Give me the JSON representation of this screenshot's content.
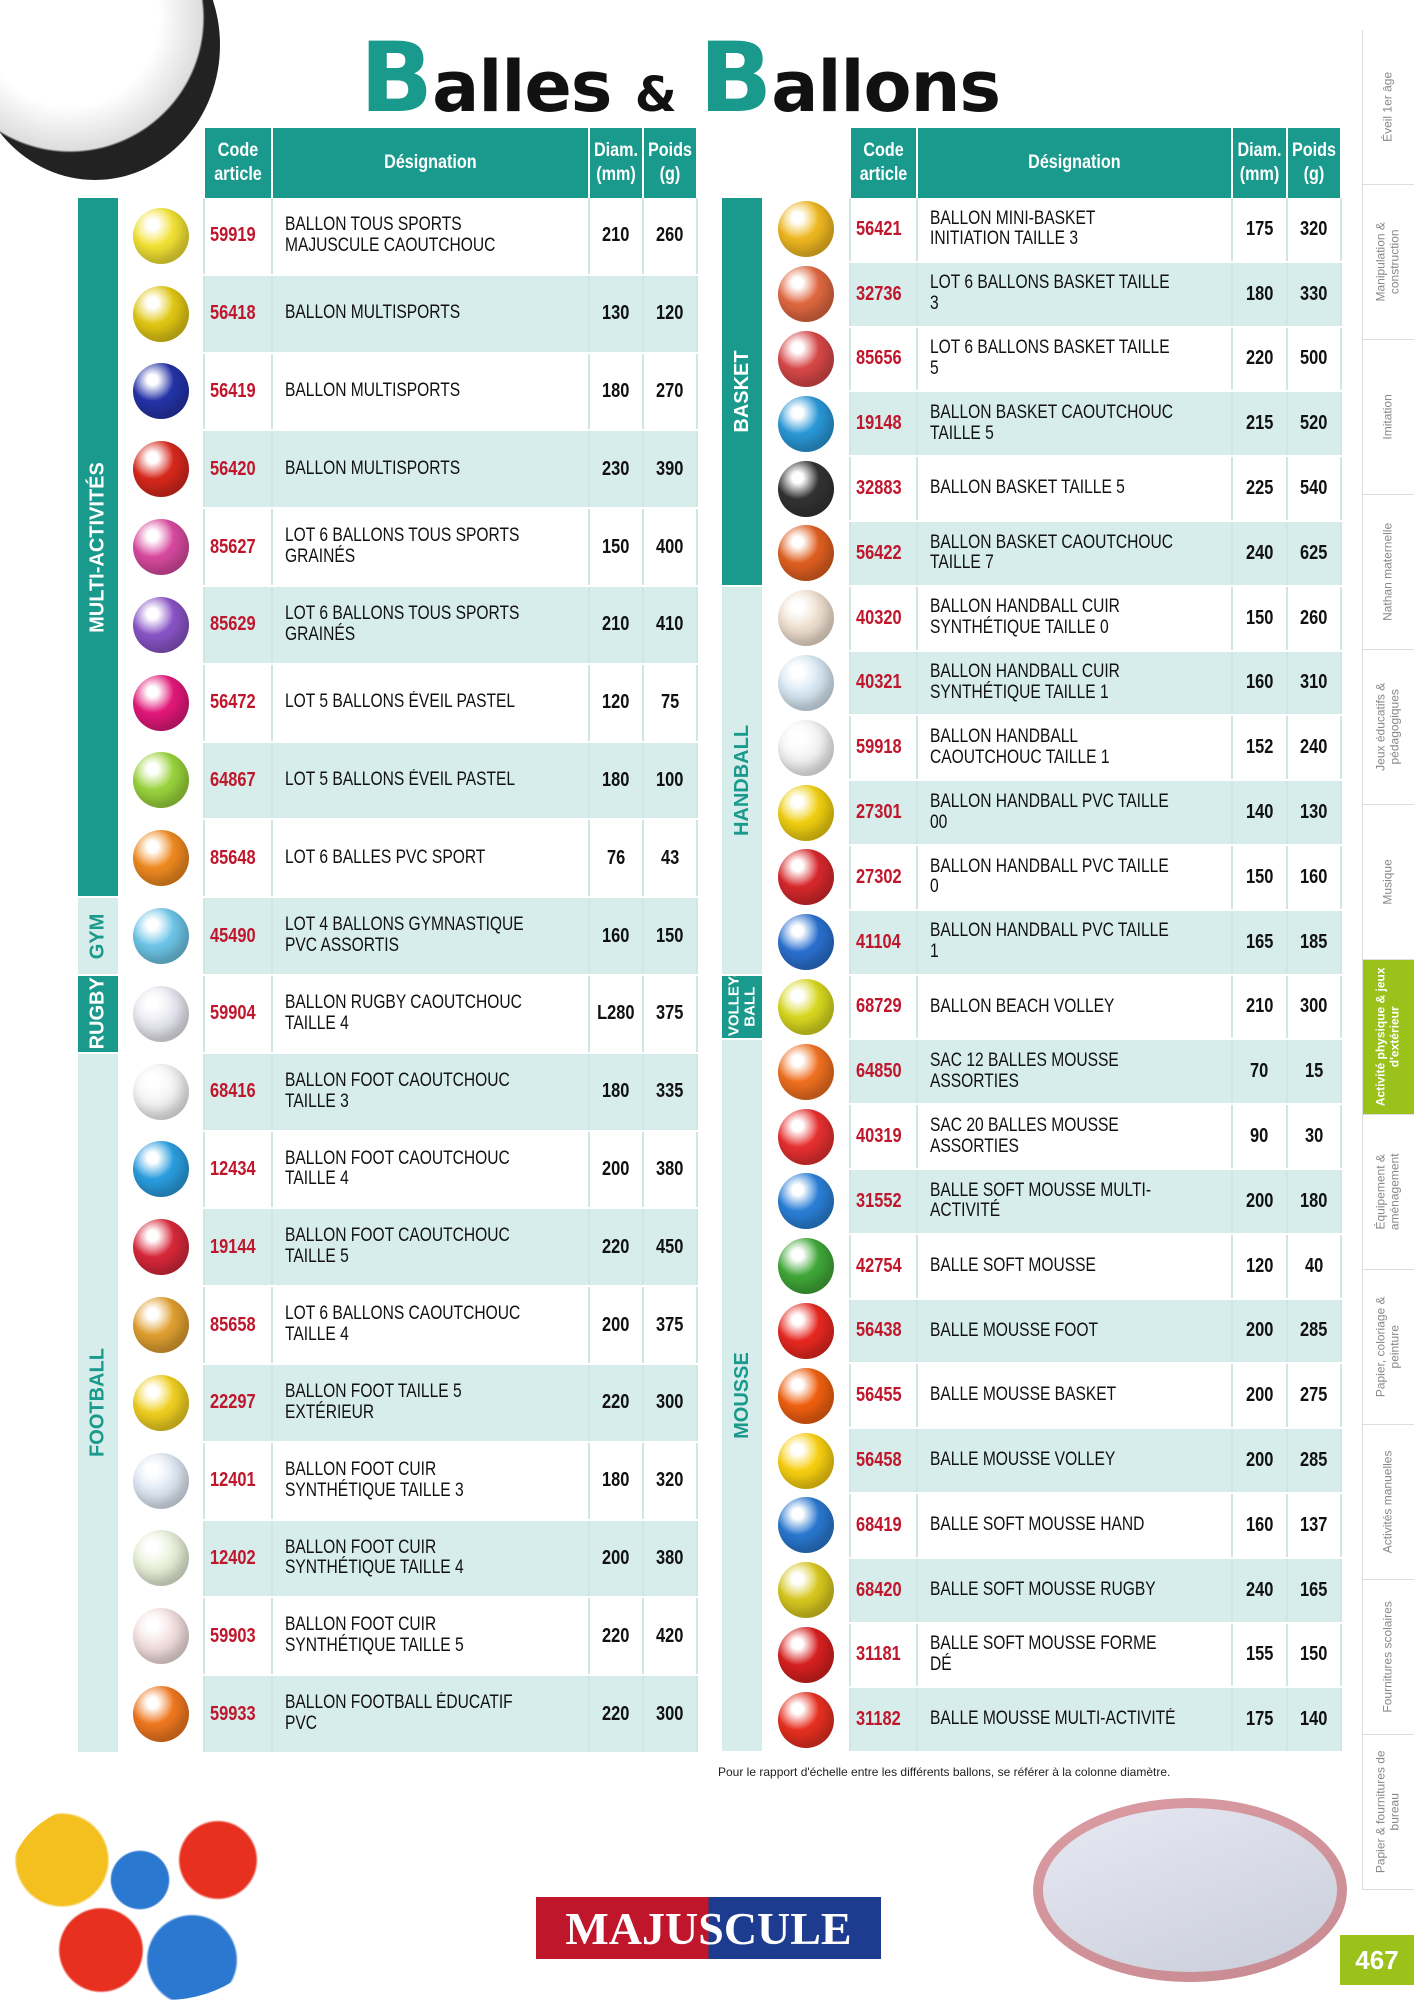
{
  "title": {
    "b1": "B",
    "w1": "alles",
    "amp": "&",
    "b2": "B",
    "w2": "allons"
  },
  "headers": {
    "code": "Code article",
    "designation": "Désignation",
    "diam": "Diam. (mm)",
    "poids": "Poids (g)"
  },
  "colors": {
    "accent": "#1a9a8c",
    "code": "#c0162c",
    "row_alt": "#d7edeb",
    "nav_active": "#9ac21a"
  },
  "left_table": {
    "categories": [
      {
        "label": "MULTI-ACTIVITÉS",
        "rows": 9,
        "style": "dark"
      },
      {
        "label": "GYM",
        "rows": 1,
        "style": "light"
      },
      {
        "label": "RUGBY",
        "rows": 1,
        "style": "dark"
      },
      {
        "label": "FOOTBALL",
        "rows": 9,
        "style": "light"
      }
    ],
    "rows": [
      {
        "code": "59919",
        "designation": "BALLON TOUS SPORTS MAJUSCULE CAOUTCHOUC",
        "diam": "210",
        "poids": "260",
        "color": "#f3e234"
      },
      {
        "code": "56418",
        "designation": "BALLON MULTISPORTS",
        "diam": "130",
        "poids": "120",
        "color": "#e2c814"
      },
      {
        "code": "56419",
        "designation": "BALLON MULTISPORTS",
        "diam": "180",
        "poids": "270",
        "color": "#2433a8"
      },
      {
        "code": "56420",
        "designation": "BALLON MULTISPORTS",
        "diam": "230",
        "poids": "390",
        "color": "#d8281c"
      },
      {
        "code": "85627",
        "designation": "LOT 6 BALLONS TOUS SPORTS GRAINÉS",
        "diam": "150",
        "poids": "400",
        "color": "#d94aa0"
      },
      {
        "code": "85629",
        "designation": "LOT 6 BALLONS TOUS SPORTS GRAINÉS",
        "diam": "210",
        "poids": "410",
        "color": "#8a54c8"
      },
      {
        "code": "56472",
        "designation": "LOT 5 BALLONS ÉVEIL PASTEL",
        "diam": "120",
        "poids": "75",
        "color": "#e3187a"
      },
      {
        "code": "64867",
        "designation": "LOT 5 BALLONS ÉVEIL PASTEL",
        "diam": "180",
        "poids": "100",
        "color": "#9ad43c"
      },
      {
        "code": "85648",
        "designation": "LOT 6 BALLES PVC SPORT",
        "diam": "76",
        "poids": "43",
        "color": "#f08a20"
      },
      {
        "code": "45490",
        "designation": "LOT 4 BALLONS GYMNASTIQUE PVC ASSORTIS",
        "diam": "160",
        "poids": "150",
        "color": "#6ec6e8"
      },
      {
        "code": "59904",
        "designation": "BALLON RUGBY CAOUTCHOUC TAILLE 4",
        "diam": "L280",
        "poids": "375",
        "color": "#e8e8f0"
      },
      {
        "code": "68416",
        "designation": "BALLON FOOT CAOUTCHOUC TAILLE 3",
        "diam": "180",
        "poids": "335",
        "color": "#f4f4f4"
      },
      {
        "code": "12434",
        "designation": "BALLON FOOT CAOUTCHOUC TAILLE 4",
        "diam": "200",
        "poids": "380",
        "color": "#2a9ee0"
      },
      {
        "code": "19144",
        "designation": "BALLON FOOT CAOUTCHOUC TAILLE 5",
        "diam": "220",
        "poids": "450",
        "color": "#d8283a"
      },
      {
        "code": "85658",
        "designation": "LOT 6 BALLONS CAOUTCHOUC TAILLE 4",
        "diam": "200",
        "poids": "375",
        "color": "#e0a030"
      },
      {
        "code": "22297",
        "designation": "BALLON FOOT TAILLE 5 EXTÉRIEUR",
        "diam": "220",
        "poids": "300",
        "color": "#f0d020"
      },
      {
        "code": "12401",
        "designation": "BALLON FOOT CUIR SYNTHÉTIQUE TAILLE 3",
        "diam": "180",
        "poids": "320",
        "color": "#dfe8f4"
      },
      {
        "code": "12402",
        "designation": "BALLON FOOT CUIR SYNTHÉTIQUE TAILLE 4",
        "diam": "200",
        "poids": "380",
        "color": "#e8f0d8"
      },
      {
        "code": "59903",
        "designation": "BALLON FOOT CUIR SYNTHÉTIQUE TAILLE 5",
        "diam": "220",
        "poids": "420",
        "color": "#f4e0e0"
      },
      {
        "code": "59933",
        "designation": "BALLON FOOTBALL ÉDUCATIF PVC",
        "diam": "220",
        "poids": "300",
        "color": "#f07820"
      }
    ]
  },
  "right_table": {
    "categories": [
      {
        "label": "BASKET",
        "rows": 6,
        "style": "dark"
      },
      {
        "label": "HANDBALL",
        "rows": 6,
        "style": "light"
      },
      {
        "label": "VOLLEY-BALL",
        "rows": 1,
        "style": "dark"
      },
      {
        "label": "MOUSSE",
        "rows": 11,
        "style": "light"
      }
    ],
    "rows": [
      {
        "code": "56421",
        "designation": "BALLON MINI-BASKET INITIATION TAILLE 3",
        "diam": "175",
        "poids": "320",
        "color": "#f0b820"
      },
      {
        "code": "32736",
        "designation": "LOT 6 BALLONS BASKET TAILLE 3",
        "diam": "180",
        "poids": "330",
        "color": "#e06840"
      },
      {
        "code": "85656",
        "designation": "LOT 6 BALLONS BASKET TAILLE 5",
        "diam": "220",
        "poids": "500",
        "color": "#d84848"
      },
      {
        "code": "19148",
        "designation": "BALLON BASKET CAOUTCHOUC TAILLE 5",
        "diam": "215",
        "poids": "520",
        "color": "#2a98d8"
      },
      {
        "code": "32883",
        "designation": "BALLON BASKET TAILLE 5",
        "diam": "225",
        "poids": "540",
        "color": "#333"
      },
      {
        "code": "56422",
        "designation": "BALLON BASKET CAOUTCHOUC TAILLE 7",
        "diam": "240",
        "poids": "625",
        "color": "#e06020"
      },
      {
        "code": "40320",
        "designation": "BALLON HANDBALL CUIR SYNTHÉTIQUE TAILLE 0",
        "diam": "150",
        "poids": "260",
        "color": "#f0e0d0"
      },
      {
        "code": "40321",
        "designation": "BALLON HANDBALL CUIR SYNTHÉTIQUE TAILLE 1",
        "diam": "160",
        "poids": "310",
        "color": "#d8e8f4"
      },
      {
        "code": "59918",
        "designation": "BALLON HANDBALL CAOUTCHOUC TAILLE 1",
        "diam": "152",
        "poids": "240",
        "color": "#f4f4f4"
      },
      {
        "code": "27301",
        "designation": "BALLON HANDBALL PVC TAILLE 00",
        "diam": "140",
        "poids": "130",
        "color": "#f0d010"
      },
      {
        "code": "27302",
        "designation": "BALLON HANDBALL PVC TAILLE 0",
        "diam": "150",
        "poids": "160",
        "color": "#d8282c"
      },
      {
        "code": "41104",
        "designation": "BALLON HANDBALL PVC TAILLE 1",
        "diam": "165",
        "poids": "185",
        "color": "#2a70d0"
      },
      {
        "code": "68729",
        "designation": "BALLON BEACH VOLLEY",
        "diam": "210",
        "poids": "300",
        "color": "#d8d820"
      },
      {
        "code": "64850",
        "designation": "SAC 12 BALLES MOUSSE ASSORTIES",
        "diam": "70",
        "poids": "15",
        "color": "#f07020"
      },
      {
        "code": "40319",
        "designation": "SAC 20 BALLES MOUSSE ASSORTIES",
        "diam": "90",
        "poids": "30",
        "color": "#e83030"
      },
      {
        "code": "31552",
        "designation": "BALLE SOFT MOUSSE MULTI-ACTIVITÉ",
        "diam": "200",
        "poids": "180",
        "color": "#2a80d8"
      },
      {
        "code": "42754",
        "designation": "BALLE SOFT MOUSSE",
        "diam": "120",
        "poids": "40",
        "color": "#40a838"
      },
      {
        "code": "56438",
        "designation": "BALLE MOUSSE FOOT",
        "diam": "200",
        "poids": "285",
        "color": "#e82820"
      },
      {
        "code": "56455",
        "designation": "BALLE MOUSSE BASKET",
        "diam": "200",
        "poids": "275",
        "color": "#f06010"
      },
      {
        "code": "56458",
        "designation": "BALLE MOUSSE VOLLEY",
        "diam": "200",
        "poids": "285",
        "color": "#f8d010"
      },
      {
        "code": "68419",
        "designation": "BALLE SOFT MOUSSE HAND",
        "diam": "160",
        "poids": "137",
        "color": "#2a78d0"
      },
      {
        "code": "68420",
        "designation": "BALLE SOFT MOUSSE RUGBY",
        "diam": "240",
        "poids": "165",
        "color": "#d8c820"
      },
      {
        "code": "31181",
        "designation": "BALLE SOFT MOUSSE FORME DÉ",
        "diam": "155",
        "poids": "150",
        "color": "#d82020"
      },
      {
        "code": "31182",
        "designation": "BALLE MOUSSE MULTI-ACTIVITÉ",
        "diam": "175",
        "poids": "140",
        "color": "#e83020"
      }
    ]
  },
  "note": "Pour le rapport d'échelle entre les différents ballons, se référer à la colonne diamètre.",
  "side_nav": [
    {
      "label": "Éveil 1er âge"
    },
    {
      "label": "Manipulation & construction"
    },
    {
      "label": "Imitation"
    },
    {
      "label": "Nathan maternelle"
    },
    {
      "label": "Jeux éducatifs & pédagogiques"
    },
    {
      "label": "Musique"
    },
    {
      "label": "Activité physique & jeux d'extérieur",
      "active": true
    },
    {
      "label": "Équipement & aménagement"
    },
    {
      "label": "Papier, coloriage & peinture"
    },
    {
      "label": "Activités manuelles"
    },
    {
      "label": "Fournitures scolaires"
    },
    {
      "label": "Papier & fournitures de bureau"
    }
  ],
  "logo": "MAJUSCULE",
  "page_number": "467"
}
